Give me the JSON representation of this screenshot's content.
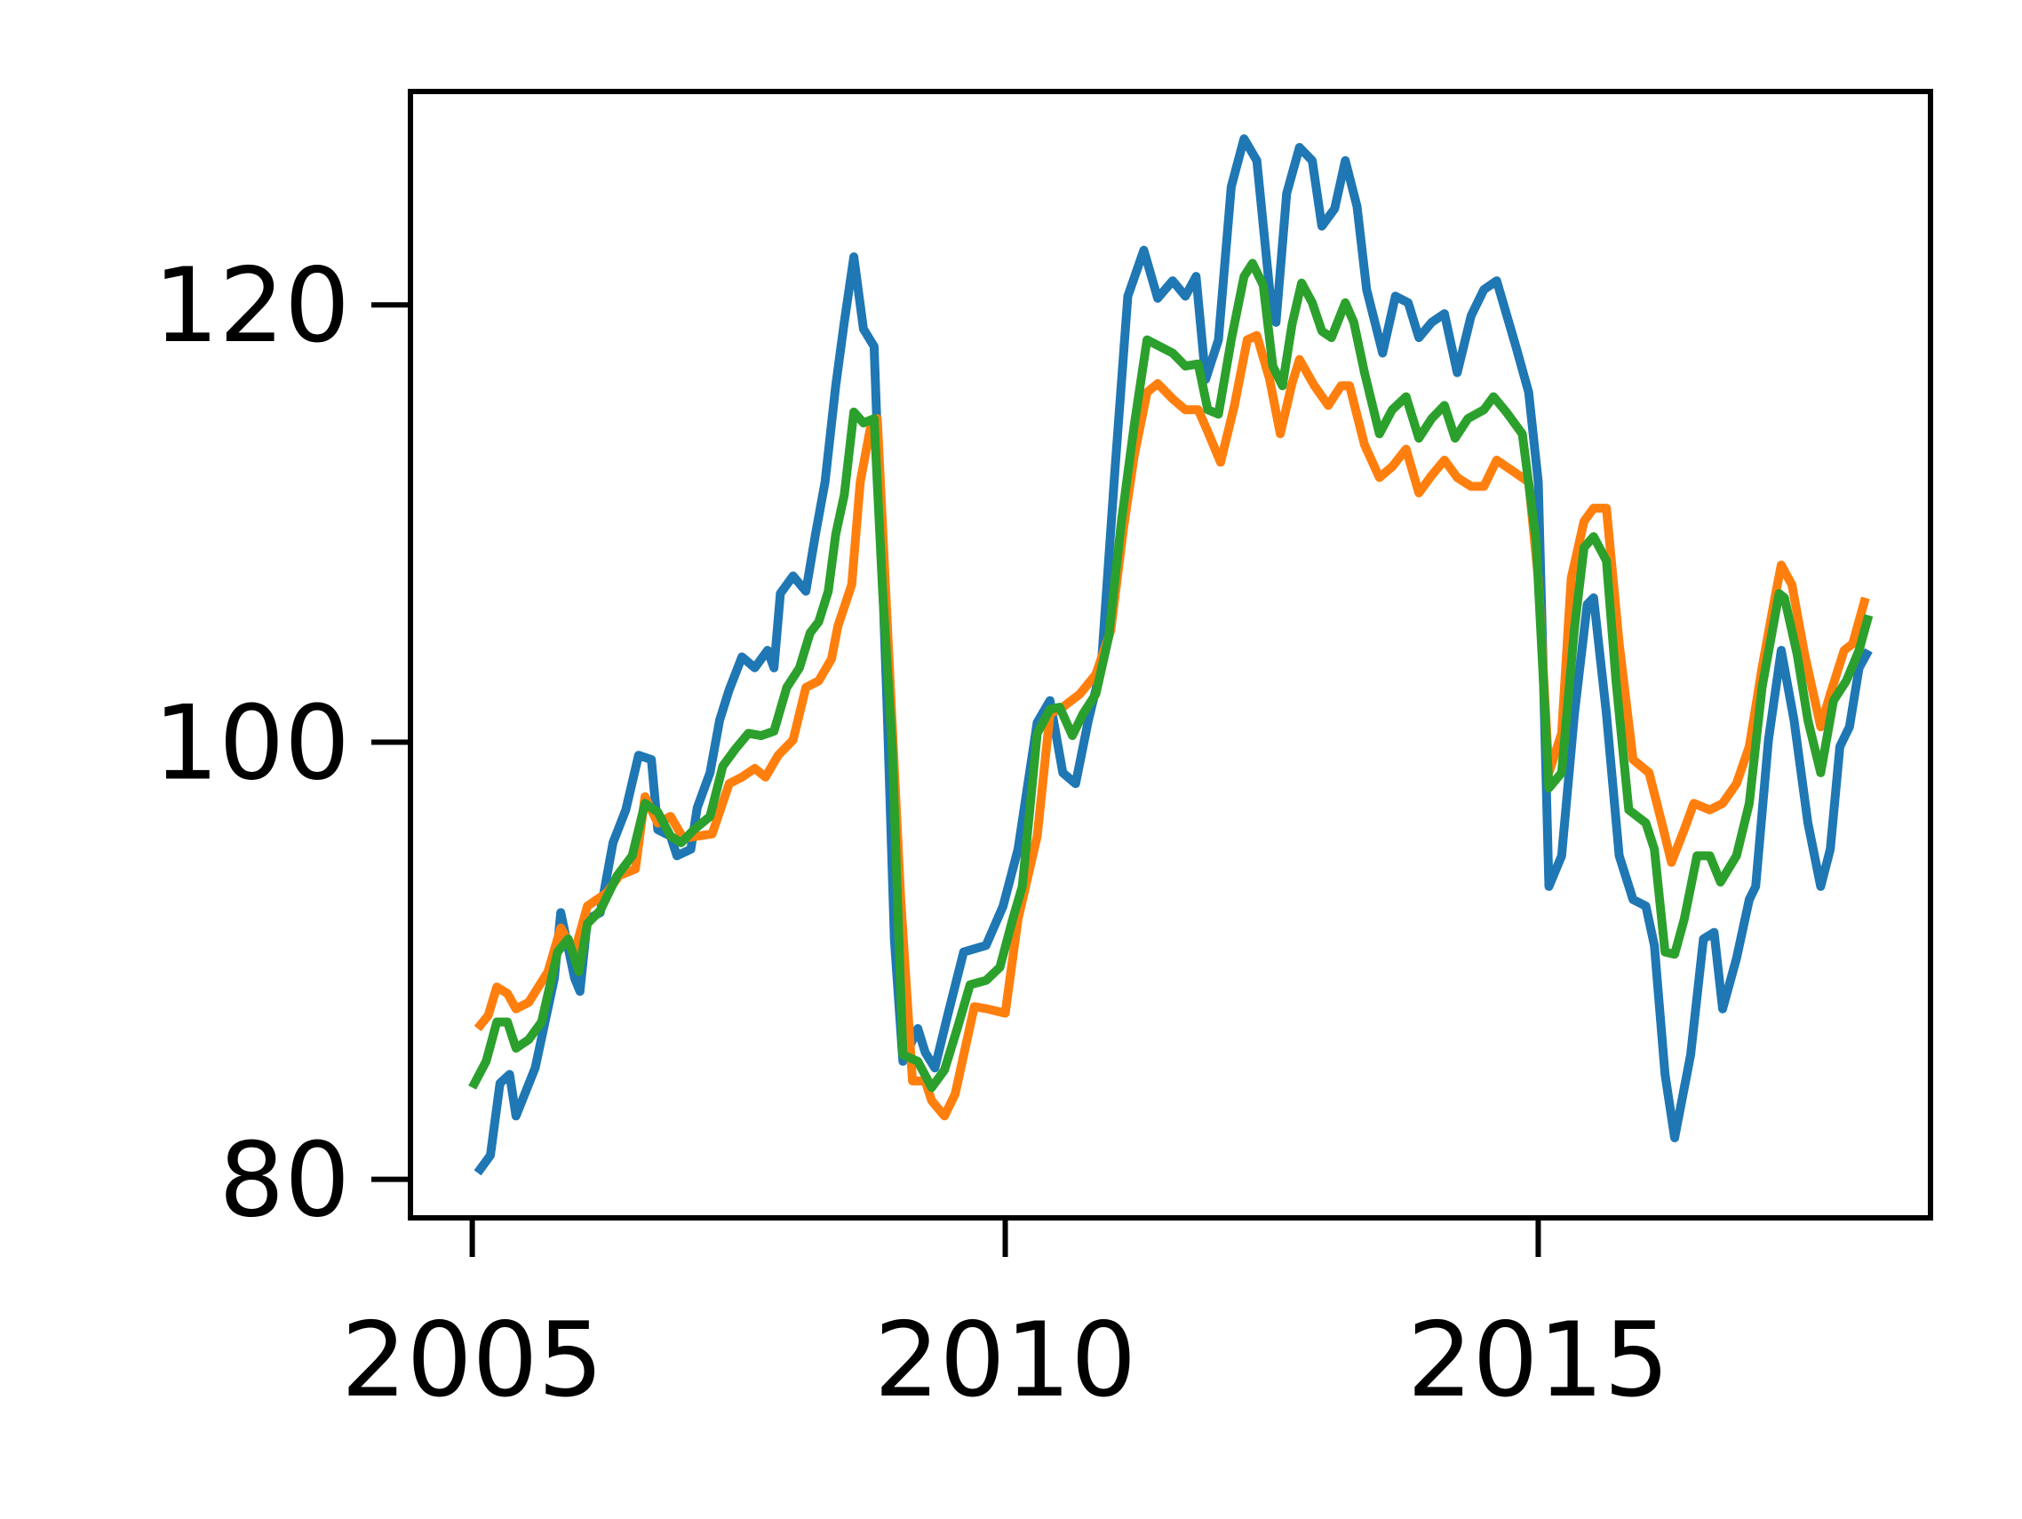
{
  "chart_data": {
    "type": "line",
    "xlim": [
      2004.42,
      2018.68
    ],
    "ylim": [
      78.24,
      129.76
    ],
    "xticks": [
      2005,
      2010,
      2015
    ],
    "yticks": [
      80,
      100,
      120
    ],
    "grid": false,
    "series": [
      {
        "color": "#1f77b4",
        "x": [
          2005.05,
          2005.17,
          2005.26,
          2005.35,
          2005.41,
          2005.59,
          2005.77,
          2005.83,
          2005.96,
          2006.01,
          2006.08,
          2006.2,
          2006.32,
          2006.44,
          2006.56,
          2006.68,
          2006.74,
          2006.86,
          2006.92,
          2007.05,
          2007.11,
          2007.23,
          2007.32,
          2007.41,
          2007.53,
          2007.65,
          2007.77,
          2007.83,
          2007.89,
          2008.01,
          2008.13,
          2008.22,
          2008.31,
          2008.41,
          2008.49,
          2008.58,
          2008.67,
          2008.77,
          2008.89,
          2008.96,
          2009.04,
          2009.18,
          2009.25,
          2009.34,
          2009.46,
          2009.61,
          2009.82,
          2009.98,
          2010.12,
          2010.3,
          2010.42,
          2010.54,
          2010.66,
          2010.78,
          2010.9,
          2011.03,
          2011.15,
          2011.3,
          2011.43,
          2011.57,
          2011.69,
          2011.79,
          2011.88,
          2012.0,
          2012.12,
          2012.24,
          2012.36,
          2012.48,
          2012.54,
          2012.64,
          2012.76,
          2012.88,
          2012.97,
          2013.09,
          2013.19,
          2013.3,
          2013.39,
          2013.54,
          2013.66,
          2013.78,
          2013.88,
          2014.0,
          2014.12,
          2014.24,
          2014.37,
          2014.49,
          2014.61,
          2014.79,
          2014.91,
          2015.0,
          2015.1,
          2015.22,
          2015.34,
          2015.46,
          2015.52,
          2015.64,
          2015.76,
          2015.89,
          2016.01,
          2016.09,
          2016.19,
          2016.28,
          2016.43,
          2016.55,
          2016.65,
          2016.73,
          2016.86,
          2016.98,
          2017.04,
          2017.16,
          2017.28,
          2017.4,
          2017.53,
          2017.65,
          2017.74,
          2017.83,
          2017.92,
          2018.01,
          2018.1
        ],
        "values": [
          80.3,
          81.1,
          84.4,
          84.8,
          82.9,
          85.1,
          89.2,
          92.2,
          89.2,
          88.6,
          91.9,
          92.2,
          95.4,
          96.9,
          99.4,
          99.2,
          96.0,
          95.7,
          94.8,
          95.1,
          97.0,
          98.6,
          101.0,
          102.4,
          103.9,
          103.4,
          104.2,
          103.4,
          106.8,
          107.6,
          106.9,
          109.5,
          111.9,
          116.3,
          119.2,
          122.2,
          118.9,
          118.1,
          101.9,
          91.0,
          85.4,
          86.9,
          85.8,
          85.1,
          87.5,
          90.4,
          90.7,
          92.5,
          95.1,
          100.9,
          101.9,
          98.6,
          98.1,
          101.0,
          103.4,
          112.5,
          120.4,
          122.5,
          120.3,
          121.1,
          120.4,
          121.3,
          116.6,
          118.4,
          125.4,
          127.6,
          126.6,
          120.7,
          119.2,
          125.1,
          127.2,
          126.6,
          123.6,
          124.4,
          126.6,
          124.5,
          120.7,
          117.8,
          120.4,
          120.1,
          118.5,
          119.2,
          119.6,
          116.9,
          119.5,
          120.7,
          121.1,
          118.1,
          116.0,
          111.9,
          93.4,
          94.8,
          101.3,
          106.3,
          106.6,
          101.3,
          94.8,
          92.8,
          92.5,
          90.7,
          84.8,
          81.9,
          85.7,
          91.0,
          91.3,
          87.8,
          90.1,
          92.8,
          93.4,
          100.1,
          104.2,
          101.0,
          96.3,
          93.4,
          95.1,
          99.8,
          100.7,
          103.4,
          104.2
        ]
      },
      {
        "color": "#ff7f0e",
        "x": [
          2005.05,
          2005.15,
          2005.23,
          2005.33,
          2005.41,
          2005.53,
          2005.71,
          2005.83,
          2005.96,
          2006.08,
          2006.26,
          2006.38,
          2006.53,
          2006.62,
          2006.74,
          2006.86,
          2006.98,
          2007.11,
          2007.25,
          2007.41,
          2007.53,
          2007.65,
          2007.75,
          2007.87,
          2008.01,
          2008.13,
          2008.25,
          2008.37,
          2008.43,
          2008.56,
          2008.64,
          2008.74,
          2008.8,
          2008.92,
          2009.02,
          2009.13,
          2009.25,
          2009.31,
          2009.43,
          2009.53,
          2009.71,
          2009.83,
          2010.0,
          2010.12,
          2010.3,
          2010.42,
          2010.54,
          2010.7,
          2010.85,
          2010.99,
          2011.11,
          2011.21,
          2011.33,
          2011.43,
          2011.57,
          2011.69,
          2011.81,
          2011.9,
          2012.02,
          2012.15,
          2012.27,
          2012.36,
          2012.48,
          2012.58,
          2012.69,
          2012.76,
          2012.9,
          2013.03,
          2013.15,
          2013.23,
          2013.37,
          2013.51,
          2013.63,
          2013.76,
          2013.88,
          2014.0,
          2014.12,
          2014.24,
          2014.37,
          2014.49,
          2014.61,
          2014.73,
          2014.91,
          2015.0,
          2015.1,
          2015.22,
          2015.31,
          2015.43,
          2015.52,
          2015.64,
          2015.76,
          2015.89,
          2016.04,
          2016.16,
          2016.25,
          2016.37,
          2016.46,
          2016.61,
          2016.73,
          2016.86,
          2016.98,
          2017.1,
          2017.22,
          2017.28,
          2017.38,
          2017.5,
          2017.65,
          2017.74,
          2017.87,
          2017.95,
          2018.07
        ],
        "values": [
          86.9,
          87.5,
          88.8,
          88.5,
          87.8,
          88.1,
          89.5,
          91.5,
          90.4,
          92.5,
          93.1,
          93.9,
          94.2,
          97.5,
          96.3,
          96.6,
          95.6,
          95.7,
          95.8,
          98.1,
          98.4,
          98.8,
          98.4,
          99.4,
          100.1,
          102.5,
          102.8,
          103.8,
          105.3,
          107.2,
          111.9,
          114.5,
          114.8,
          102.8,
          92.8,
          84.5,
          84.5,
          83.6,
          82.9,
          83.9,
          87.9,
          87.8,
          87.6,
          91.9,
          95.7,
          101.3,
          101.6,
          102.2,
          103.1,
          105.1,
          109.8,
          113.1,
          116.0,
          116.4,
          115.7,
          115.2,
          115.2,
          114.2,
          112.8,
          115.4,
          118.4,
          118.6,
          116.6,
          114.1,
          116.4,
          117.5,
          116.3,
          115.4,
          116.3,
          116.3,
          113.6,
          112.1,
          112.6,
          113.4,
          111.4,
          112.2,
          112.9,
          112.1,
          111.7,
          111.7,
          112.9,
          112.5,
          111.9,
          107.5,
          98.6,
          100.4,
          107.5,
          110.1,
          110.7,
          110.7,
          104.5,
          99.2,
          98.6,
          96.3,
          94.5,
          96.0,
          97.2,
          96.9,
          97.2,
          98.1,
          99.8,
          103.4,
          106.6,
          108.1,
          107.2,
          104.0,
          100.7,
          102.2,
          104.2,
          104.5,
          106.6
        ]
      },
      {
        "color": "#2ca02c",
        "x": [
          2005.0,
          2005.13,
          2005.23,
          2005.33,
          2005.41,
          2005.53,
          2005.65,
          2005.8,
          2005.9,
          2006.0,
          2006.08,
          2006.2,
          2006.36,
          2006.5,
          2006.62,
          2006.74,
          2006.86,
          2006.96,
          2007.08,
          2007.23,
          2007.35,
          2007.47,
          2007.59,
          2007.71,
          2007.83,
          2007.95,
          2008.07,
          2008.17,
          2008.25,
          2008.34,
          2008.41,
          2008.49,
          2008.58,
          2008.67,
          2008.77,
          2008.85,
          2008.94,
          2009.04,
          2009.18,
          2009.31,
          2009.43,
          2009.55,
          2009.67,
          2009.82,
          2009.95,
          2010.07,
          2010.16,
          2010.3,
          2010.42,
          2010.51,
          2010.63,
          2010.73,
          2010.85,
          2010.97,
          2011.09,
          2011.21,
          2011.33,
          2011.45,
          2011.57,
          2011.69,
          2011.81,
          2011.9,
          2012.0,
          2012.12,
          2012.24,
          2012.32,
          2012.42,
          2012.51,
          2012.6,
          2012.69,
          2012.78,
          2012.88,
          2012.97,
          2013.06,
          2013.19,
          2013.27,
          2013.37,
          2013.51,
          2013.63,
          2013.76,
          2013.88,
          2014.0,
          2014.12,
          2014.22,
          2014.34,
          2014.49,
          2014.58,
          2014.7,
          2014.85,
          2014.98,
          2015.1,
          2015.22,
          2015.34,
          2015.43,
          2015.52,
          2015.64,
          2015.73,
          2015.85,
          2016.01,
          2016.09,
          2016.19,
          2016.28,
          2016.37,
          2016.49,
          2016.61,
          2016.71,
          2016.86,
          2016.98,
          2017.1,
          2017.26,
          2017.31,
          2017.43,
          2017.53,
          2017.65,
          2017.77,
          2017.89,
          2018.01,
          2018.1
        ],
        "values": [
          84.2,
          85.4,
          87.2,
          87.2,
          86.0,
          86.4,
          87.2,
          90.4,
          91.0,
          89.5,
          91.7,
          92.3,
          93.9,
          94.8,
          97.2,
          96.8,
          95.7,
          95.4,
          96.0,
          96.6,
          98.9,
          99.7,
          100.4,
          100.3,
          100.5,
          102.5,
          103.4,
          105.0,
          105.5,
          106.9,
          109.5,
          111.3,
          115.1,
          114.6,
          114.8,
          106.9,
          99.8,
          85.7,
          85.4,
          84.2,
          85.0,
          86.9,
          88.9,
          89.1,
          89.7,
          91.9,
          93.4,
          100.4,
          101.5,
          101.6,
          100.3,
          101.3,
          102.2,
          104.8,
          110.1,
          114.5,
          118.4,
          118.1,
          117.8,
          117.2,
          117.3,
          115.2,
          115.0,
          118.4,
          121.3,
          121.9,
          120.9,
          117.2,
          116.3,
          119.1,
          121.0,
          120.1,
          118.8,
          118.5,
          120.1,
          119.2,
          116.9,
          114.1,
          115.2,
          115.8,
          113.9,
          114.8,
          115.4,
          113.9,
          114.8,
          115.2,
          115.8,
          115.1,
          114.1,
          109.2,
          97.9,
          98.6,
          105.2,
          108.9,
          109.4,
          108.3,
          102.8,
          96.9,
          96.3,
          95.1,
          90.4,
          90.3,
          91.9,
          94.8,
          94.8,
          93.6,
          94.8,
          97.2,
          102.5,
          106.8,
          106.6,
          104.0,
          101.0,
          98.6,
          101.9,
          102.8,
          104.2,
          105.8
        ]
      }
    ]
  }
}
